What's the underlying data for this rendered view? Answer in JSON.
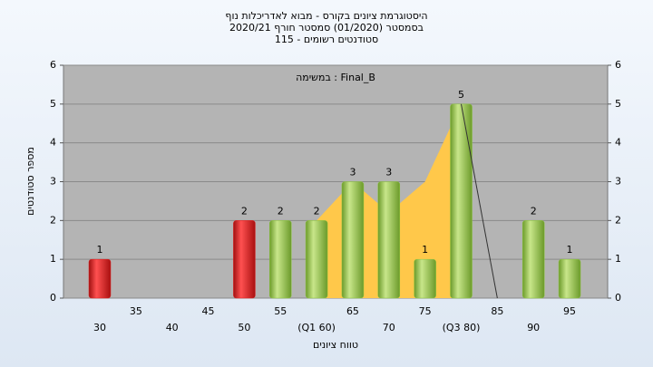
{
  "chart_data": {
    "type": "bar",
    "title": "היסטוגרמת ציונים בקורס - מבוא לאדריכלות נוף",
    "subtitle": "בסמסטר  (01/2020)  סמסטר חורף 2020/21",
    "subtitle2": "סטודנטים רשומים - 115",
    "annotation": "במשימה : Final_B",
    "x_label": "טווח ציונים",
    "y_label": "מספר סטודנטים",
    "categories": [
      "30",
      "35",
      "40",
      "45",
      "50",
      "55",
      "(Q1 60)",
      "65",
      "70",
      "75",
      "(Q3 80)",
      "85",
      "90",
      "95"
    ],
    "values": [
      1,
      0,
      0,
      0,
      2,
      2,
      2,
      3,
      3,
      1,
      5,
      0,
      2,
      1
    ],
    "colors": [
      "#e02020",
      "#8dc63f",
      "#8dc63f",
      "#8dc63f",
      "#e02020",
      "#8dc63f",
      "#8dc63f",
      "#8dc63f",
      "#8dc63f",
      "#8dc63f",
      "#8dc63f",
      "#8dc63f",
      "#8dc63f",
      "#8dc63f"
    ],
    "area": {
      "color": "#ffc84a",
      "values": [
        null,
        null,
        null,
        null,
        null,
        null,
        2,
        3,
        2.2,
        3,
        5,
        null,
        null,
        null
      ]
    },
    "line": {
      "color": "#333333",
      "values": [
        null,
        null,
        null,
        null,
        null,
        null,
        null,
        null,
        null,
        null,
        5,
        0,
        null,
        null
      ]
    },
    "ylim": [
      0,
      6
    ],
    "yticks": [
      0,
      1,
      2,
      3,
      4,
      5,
      6
    ],
    "grid": true
  }
}
